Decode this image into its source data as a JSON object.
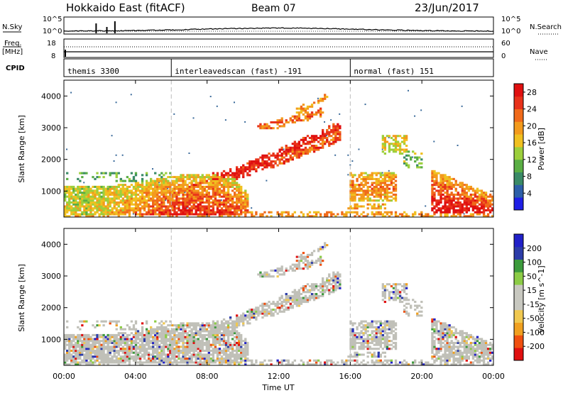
{
  "header": {
    "station": "Hokkaido East (fitACF)",
    "beam": "Beam 07",
    "date": "23/Jun/2017"
  },
  "strip_panel": {
    "nsky_label": "N.Sky",
    "nsky_top": "10^5",
    "nsky_bottom": "10^0",
    "nsearch_top": "10^5",
    "nsearch_bottom": "10^0",
    "nsearch_label": "N.Search",
    "freq_label_1": "Freq.",
    "freq_label_2": "[MHz]",
    "freq_top": "18",
    "freq_bottom": "8",
    "nave_top": "60",
    "nave_bottom": "0",
    "nave_label": "Nave",
    "cpid_label": "CPID"
  },
  "cpid_segments": [
    {
      "name": "themis 3300",
      "start_hour": 0,
      "end_hour": 6
    },
    {
      "name": "interleavedscan (fast) -191",
      "start_hour": 6,
      "end_hour": 16
    },
    {
      "name": "normal (fast) 151",
      "start_hour": 16,
      "end_hour": 24
    }
  ],
  "colors": {
    "power_scale": [
      "#1f1fe6",
      "#2d5fa8",
      "#3a8a66",
      "#5aae44",
      "#9ccf3c",
      "#f0c020",
      "#f39a1c",
      "#f06a1a",
      "#e8321a",
      "#e01010"
    ],
    "velocity_scale": [
      "#e01010",
      "#f05010",
      "#f0a020",
      "#f0c850",
      "#c8c8c0",
      "#c8c8c0",
      "#8ccc46",
      "#3c9a3c",
      "#2c3ca8",
      "#2020c8"
    ],
    "ground_scatter": "#c0c0b8"
  },
  "chart_data": [
    {
      "type": "heatmap",
      "title": "",
      "xlabel": "Time UT",
      "ylabel": "Slant Range [km]",
      "xlim_hours": [
        0,
        24
      ],
      "ylim_km": [
        180,
        4500
      ],
      "x_ticks": [
        "00:00",
        "04:00",
        "08:00",
        "12:00",
        "16:00",
        "20:00",
        "00:00"
      ],
      "y_ticks": [
        "1000",
        "2000",
        "3000",
        "4000"
      ],
      "colorbar_label": "Power [dB]",
      "colorbar_ticks": [
        "4",
        "8",
        "12",
        "16",
        "20",
        "24",
        "28"
      ],
      "colorbar_range": [
        0,
        30
      ]
    },
    {
      "type": "heatmap",
      "title": "",
      "xlabel": "Time UT",
      "ylabel": "Slant Range [km]",
      "xlim_hours": [
        0,
        24
      ],
      "ylim_km": [
        180,
        4500
      ],
      "x_ticks": [
        "00:00",
        "04:00",
        "08:00",
        "12:00",
        "16:00",
        "20:00",
        "00:00"
      ],
      "y_ticks": [
        "1000",
        "2000",
        "3000",
        "4000"
      ],
      "colorbar_label": "Velocity [m s^-1]",
      "colorbar_ticks": [
        "-200",
        "-100",
        "-50",
        "-15",
        "15",
        "50",
        "100",
        "200"
      ],
      "colorbar_range": [
        -250,
        250
      ],
      "ground_scatter": true
    }
  ]
}
